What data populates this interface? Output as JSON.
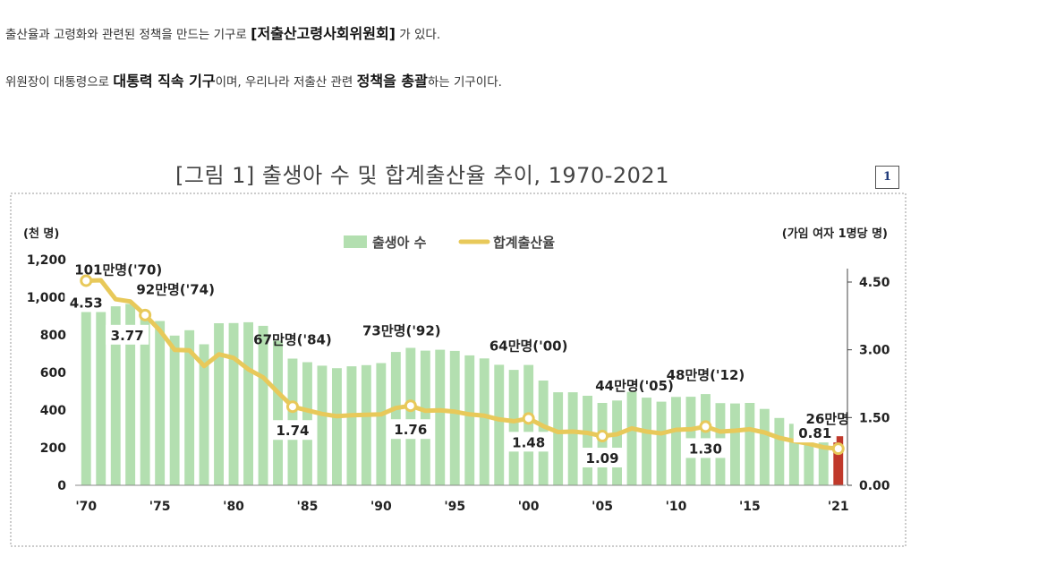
{
  "intro": {
    "line1_a": "출산율과 고령화와 관련된 정책을 만드는 기구로 ",
    "line1_b": "[저출산고령사회위원회]",
    "line1_c": " 가 있다.",
    "line2_a": "위원장이 대통령으로 ",
    "line2_b": "대통력 직속 기구",
    "line2_c": "이며, 우리나라 저출산 관련 ",
    "line2_d": "정책을 총괄",
    "line2_e": "하는 기구이다."
  },
  "badge": "1",
  "colors": {
    "bar": "#b3dfb0",
    "bar_last": "#c0392b",
    "line": "#e8c95a",
    "marker_fill": "#ffffff",
    "frame": "#999999"
  },
  "chart_data": {
    "type": "bar+line",
    "title": "[그림 1] 출생아 수 및 합계출산율 추이, 1970-2021",
    "y_left_label": "(천 명)",
    "y_right_label": "(가임 여자 1명당 명)",
    "y_left_range": [
      0,
      1200
    ],
    "y_right_range": [
      0,
      4.5
    ],
    "y_left_ticks": [
      "0",
      "200",
      "400",
      "600",
      "800",
      "1,000",
      "1,200"
    ],
    "y_right_ticks": [
      "0.00",
      "1.50",
      "3.00",
      "4.50"
    ],
    "x_ticks": [
      "'70",
      "'75",
      "'80",
      "'85",
      "'90",
      "'95",
      "'00",
      "'05",
      "'10",
      "'15",
      "'21"
    ],
    "x_tick_years": [
      1970,
      1975,
      1980,
      1985,
      1990,
      1995,
      2000,
      2005,
      2010,
      2015,
      2021
    ],
    "legend": [
      "출생아 수",
      "합계출산율"
    ],
    "years": [
      1970,
      1971,
      1972,
      1973,
      1974,
      1975,
      1976,
      1977,
      1978,
      1979,
      1980,
      1981,
      1982,
      1983,
      1984,
      1985,
      1986,
      1987,
      1988,
      1989,
      1990,
      1991,
      1992,
      1993,
      1994,
      1995,
      1996,
      1997,
      1998,
      1999,
      2000,
      2001,
      2002,
      2003,
      2004,
      2005,
      2006,
      2007,
      2008,
      2009,
      2010,
      2011,
      2012,
      2013,
      2014,
      2015,
      2016,
      2017,
      2018,
      2019,
      2020,
      2021
    ],
    "births": [
      1007,
      1024,
      952,
      965,
      922,
      874,
      796,
      825,
      750,
      862,
      863,
      867,
      848,
      769,
      674,
      655,
      636,
      623,
      633,
      639,
      650,
      709,
      731,
      716,
      721,
      715,
      691,
      675,
      641,
      614,
      640,
      557,
      495,
      495,
      476,
      438,
      451,
      497,
      466,
      445,
      470,
      471,
      485,
      437,
      435,
      438,
      406,
      358,
      327,
      303,
      272,
      261
    ],
    "tfr": [
      4.53,
      4.54,
      4.12,
      4.07,
      3.77,
      3.43,
      3.0,
      2.99,
      2.64,
      2.9,
      2.82,
      2.57,
      2.39,
      2.06,
      1.74,
      1.66,
      1.58,
      1.53,
      1.55,
      1.56,
      1.57,
      1.71,
      1.76,
      1.65,
      1.66,
      1.63,
      1.57,
      1.54,
      1.46,
      1.42,
      1.48,
      1.31,
      1.18,
      1.19,
      1.16,
      1.09,
      1.13,
      1.26,
      1.19,
      1.15,
      1.23,
      1.24,
      1.3,
      1.19,
      1.21,
      1.24,
      1.17,
      1.05,
      0.98,
      0.92,
      0.84,
      0.81
    ],
    "birth_annotations": [
      {
        "year": 1970,
        "text": "101만명('70)"
      },
      {
        "year": 1974,
        "text": "92만명('74)"
      },
      {
        "year": 1984,
        "text": "67만명('84)"
      },
      {
        "year": 1992,
        "text": "73만명('92)"
      },
      {
        "year": 2000,
        "text": "64만명('00)"
      },
      {
        "year": 2005,
        "text": "44만명('05)"
      },
      {
        "year": 2012,
        "text": "48만명('12)"
      },
      {
        "year": 2021,
        "text": "26만명"
      }
    ],
    "tfr_labels": [
      {
        "year": 1970,
        "text": "4.53"
      },
      {
        "year": 1974,
        "text": "3.77"
      },
      {
        "year": 1984,
        "text": "1.74"
      },
      {
        "year": 1992,
        "text": "1.76"
      },
      {
        "year": 2000,
        "text": "1.48"
      },
      {
        "year": 2005,
        "text": "1.09"
      },
      {
        "year": 2012,
        "text": "1.30"
      },
      {
        "year": 2021,
        "text": "0.81"
      }
    ],
    "tfr_markers": [
      1970,
      1974,
      1984,
      1992,
      2000,
      2005,
      2012,
      2021
    ],
    "highlight_year": 2021
  }
}
